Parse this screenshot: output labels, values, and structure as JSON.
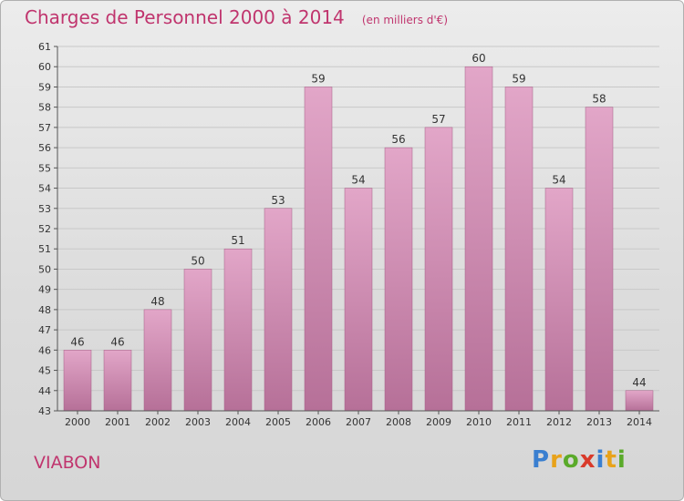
{
  "title": "Charges de Personnel 2000 à 2014",
  "subtitle": "(en milliers d'€)",
  "commune": "VIABON",
  "logo": {
    "text": "Proxiti",
    "letters": [
      "P",
      "r",
      "o",
      "x",
      "i",
      "t",
      "i"
    ],
    "colors": [
      "#3a7fd0",
      "#e8a21a",
      "#5aaa2a",
      "#d93a2a",
      "#3a7fd0",
      "#e8a21a",
      "#5aaa2a"
    ]
  },
  "colors": {
    "bar": "#d68fb8",
    "bar_dark": "#b46790",
    "text_accent": "#c0356e",
    "axis": "#555555",
    "grid": "#c8c8c8"
  },
  "chart_data": {
    "type": "bar",
    "title": "Charges de Personnel 2000 à 2014",
    "subtitle": "(en milliers d'€)",
    "categories": [
      "2000",
      "2001",
      "2002",
      "2003",
      "2004",
      "2005",
      "2006",
      "2007",
      "2008",
      "2009",
      "2010",
      "2011",
      "2012",
      "2013",
      "2014"
    ],
    "values": [
      46,
      46,
      48,
      50,
      51,
      53,
      59,
      54,
      56,
      57,
      60,
      59,
      54,
      58,
      44
    ],
    "ylim": [
      43,
      61
    ],
    "yticks": [
      43,
      44,
      45,
      46,
      47,
      48,
      49,
      50,
      51,
      52,
      53,
      54,
      55,
      56,
      57,
      58,
      59,
      60,
      61
    ],
    "grid": true,
    "xlabel": "",
    "ylabel": ""
  }
}
